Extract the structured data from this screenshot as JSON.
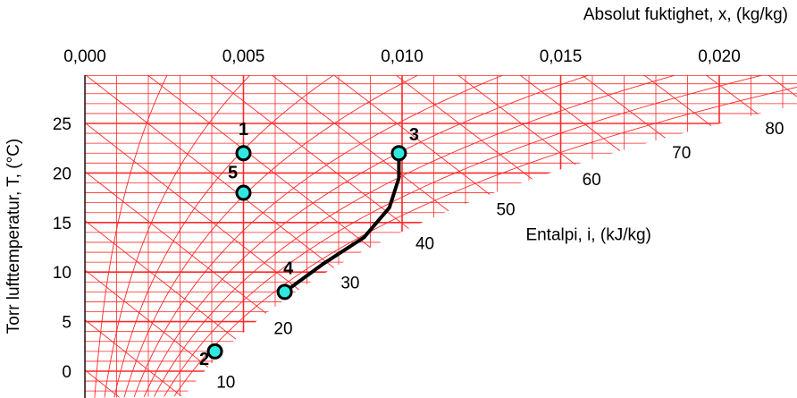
{
  "chart_data": {
    "type": "scatter",
    "title": "",
    "x_axis": {
      "label": "Absolut fuktighet, x, (kg/kg)",
      "position": "top",
      "range": [
        0.0,
        0.022
      ],
      "ticks": [
        0.0,
        0.005,
        0.01,
        0.015,
        0.02
      ],
      "tick_labels": [
        "0,000",
        "0,005",
        "0,010",
        "0,015",
        "0,020"
      ]
    },
    "y_axis": {
      "label": "Torr lufttemperatur, T, (°C)",
      "range": [
        -2.5,
        30.5
      ],
      "ticks": [
        0,
        5,
        10,
        15,
        20,
        25
      ],
      "tick_labels": [
        "0",
        "5",
        "10",
        "15",
        "20",
        "25"
      ]
    },
    "enthalpy": {
      "label": "Entalpi, i, (kJ/kg)",
      "values": [
        10,
        20,
        30,
        40,
        50,
        60,
        70,
        80
      ],
      "labels": [
        "10",
        "20",
        "30",
        "40",
        "50",
        "60",
        "70",
        "80"
      ]
    },
    "grid": true,
    "grid_color": "#ff2a2a",
    "points": [
      {
        "label": "1",
        "x": 0.005,
        "y": 22
      },
      {
        "label": "2",
        "x": 0.0041,
        "y": 2
      },
      {
        "label": "3",
        "x": 0.0099,
        "y": 22
      },
      {
        "label": "4",
        "x": 0.0063,
        "y": 8
      },
      {
        "label": "5",
        "x": 0.005,
        "y": 18
      }
    ],
    "process_curve": {
      "from": "4",
      "to": "3",
      "x": [
        0.0063,
        0.0075,
        0.0088,
        0.0096,
        0.0099,
        0.0099
      ],
      "y": [
        8,
        10.8,
        13.5,
        16.5,
        19.5,
        22
      ]
    },
    "marker_color": "#2ee8e0",
    "curve_color": "#000000"
  }
}
